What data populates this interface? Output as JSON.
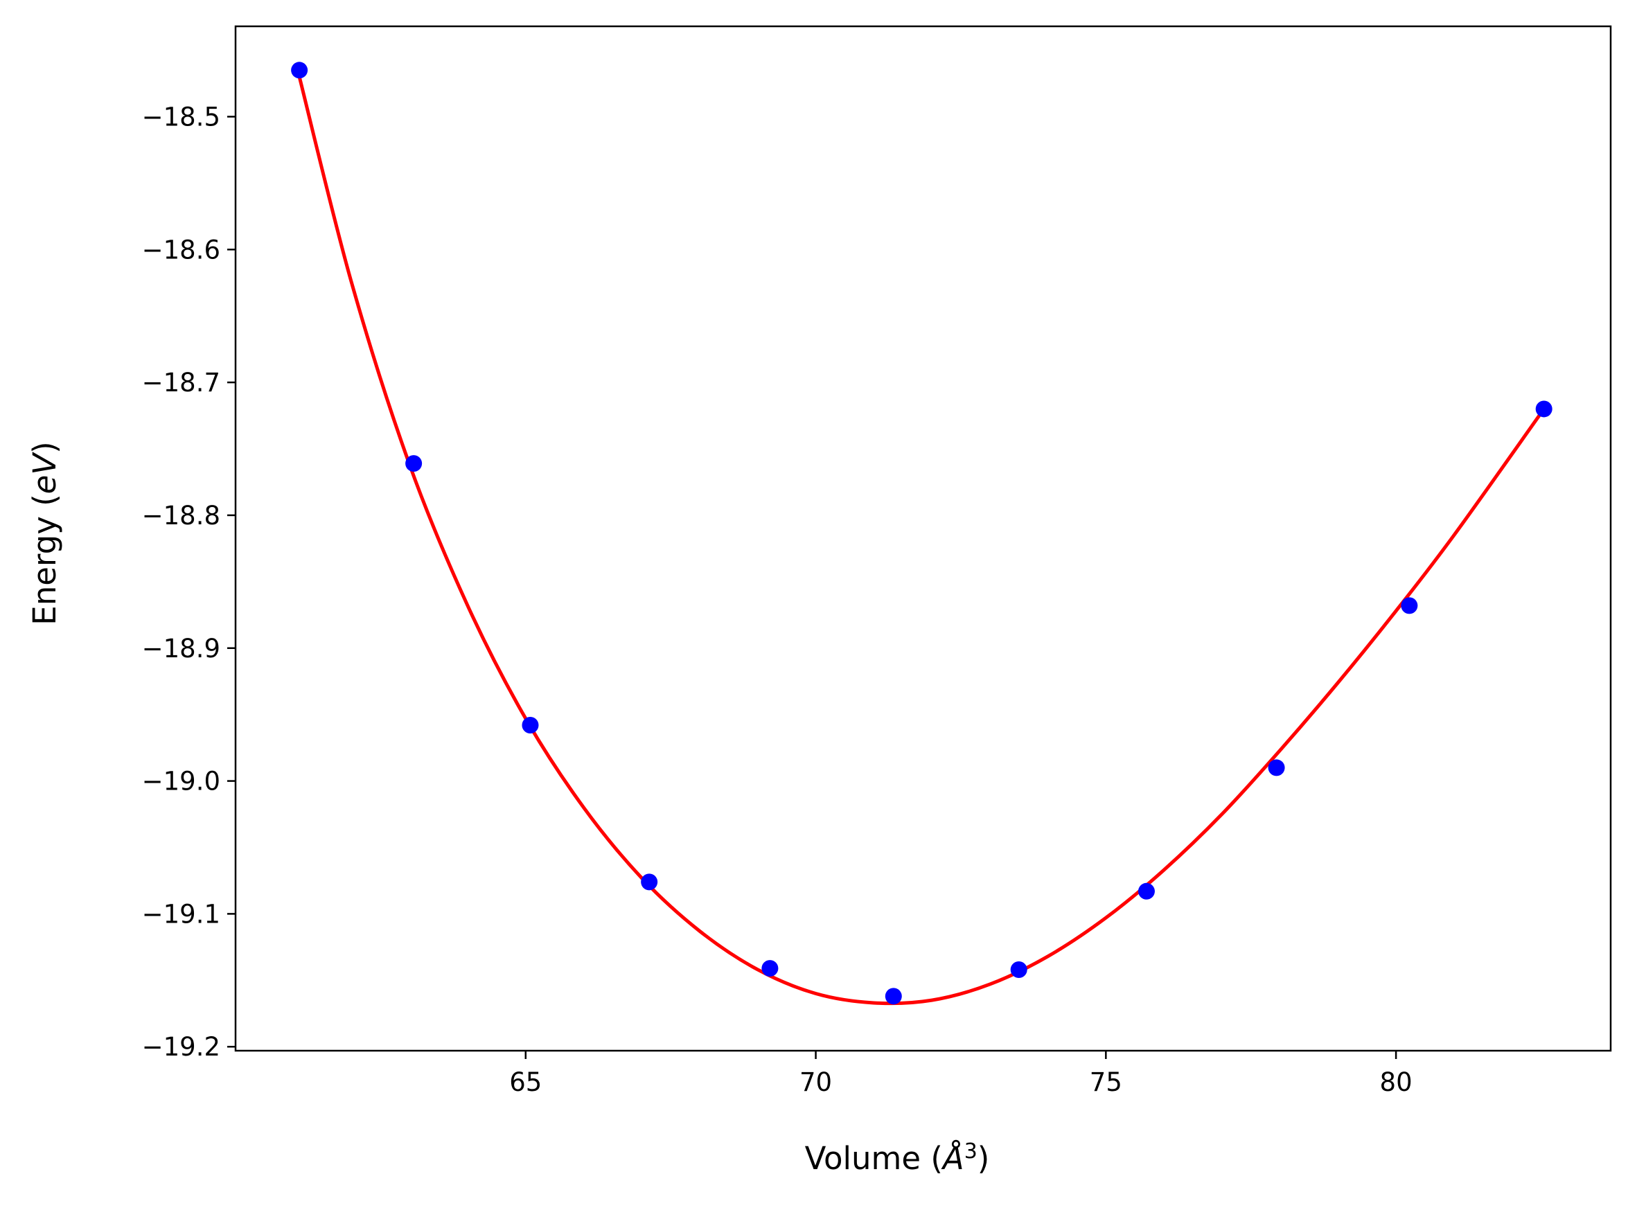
{
  "chart_data": {
    "type": "scatter",
    "title": "",
    "xlabel": "Volume (Å³)",
    "ylabel": "Energy (eV)",
    "xlabel_parts": {
      "text": "Volume (",
      "symbol": "Å",
      "power": "3",
      "close": ")"
    },
    "ylabel_parts": {
      "text": "Energy (",
      "symbol": "eV",
      "close": ")"
    },
    "xlim": [
      60.0,
      83.7
    ],
    "ylim": [
      -19.203,
      -18.432
    ],
    "xticks": [
      65,
      70,
      75,
      80
    ],
    "yticks": [
      -18.5,
      -18.6,
      -18.7,
      -18.8,
      -18.9,
      -19.0,
      -19.1,
      -19.2
    ],
    "xtick_labels": [
      "65",
      "70",
      "75",
      "80"
    ],
    "ytick_labels": [
      "−18.5",
      "−18.6",
      "−18.7",
      "−18.8",
      "−18.9",
      "−19.0",
      "−19.1",
      "−19.2"
    ],
    "grid": false,
    "series": [
      {
        "kind": "scatter",
        "color": "#0000ff",
        "x": [
          61.1,
          63.07,
          65.08,
          67.13,
          69.21,
          71.34,
          73.5,
          75.7,
          77.94,
          80.23,
          82.55
        ],
        "y": [
          -18.465,
          -18.761,
          -18.958,
          -19.076,
          -19.141,
          -19.162,
          -19.142,
          -19.083,
          -18.99,
          -18.868,
          -18.72
        ]
      },
      {
        "kind": "line",
        "color": "#ff0000",
        "x": [
          61.1,
          62.0,
          63.0,
          64.0,
          65.0,
          66.0,
          67.0,
          68.0,
          69.0,
          70.0,
          71.0,
          72.0,
          73.0,
          74.0,
          75.0,
          76.0,
          77.0,
          78.0,
          79.0,
          80.0,
          81.0,
          82.55
        ],
        "y": [
          -18.47,
          -18.625,
          -18.762,
          -18.868,
          -18.953,
          -19.02,
          -19.073,
          -19.113,
          -19.142,
          -19.16,
          -19.167,
          -19.165,
          -19.153,
          -19.132,
          -19.103,
          -19.067,
          -19.025,
          -18.977,
          -18.926,
          -18.872,
          -18.815,
          -18.72
        ]
      }
    ]
  }
}
